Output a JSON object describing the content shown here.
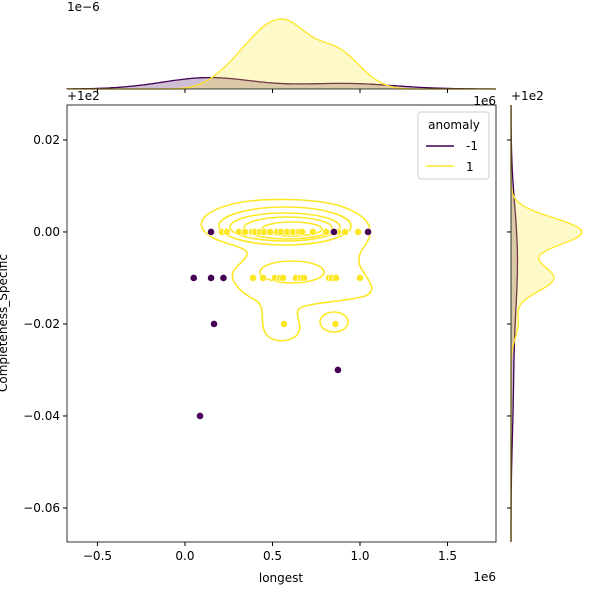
{
  "chart_data": {
    "type": "scatter",
    "subtype": "jointplot-with-kde",
    "xlabel": "longest",
    "ylabel": "Completeness_Specific",
    "x_offset_label": "1e6",
    "y_offset_label": "+1e2",
    "top_marginal_scale_label": "1e−6",
    "top_marginal_offset_label": "+1e2",
    "top_marginal_x_label": "1e6",
    "right_marginal_offset_label": "+1e2",
    "xlim": [
      -0.674,
      1.777
    ],
    "ylim": [
      -0.0674,
      0.0276
    ],
    "xticks": [
      -0.5,
      0.0,
      0.5,
      1.0,
      1.5
    ],
    "xtick_labels": [
      "−0.5",
      "0.0",
      "0.5",
      "1.0",
      "1.5"
    ],
    "yticks": [
      0.02,
      0.0,
      -0.02,
      -0.04,
      -0.06
    ],
    "ytick_labels": [
      "0.02",
      "0.00",
      "−0.02",
      "−0.04",
      "−0.06"
    ],
    "legend": {
      "title": "anomaly",
      "position": "top-right",
      "entries": [
        "-1",
        "1"
      ]
    },
    "colors": {
      "-1": "#440154",
      "1": "#fde725"
    },
    "series": [
      {
        "name": "-1",
        "x": [
          0.149,
          0.851,
          1.046,
          0.05,
          0.149,
          0.22,
          0.166,
          0.874,
          0.086
        ],
        "y": [
          0.0,
          0.0,
          0.0,
          -0.01,
          -0.01,
          -0.01,
          -0.02,
          -0.03,
          -0.04
        ]
      },
      {
        "name": "1",
        "x": [
          0.211,
          0.24,
          0.309,
          0.343,
          0.383,
          0.4,
          0.429,
          0.451,
          0.486,
          0.526,
          0.549,
          0.583,
          0.617,
          0.651,
          0.669,
          0.731,
          0.806,
          0.874,
          0.914,
          0.989,
          0.389,
          0.446,
          0.514,
          0.543,
          0.56,
          0.634,
          0.663,
          0.68,
          0.823,
          0.84,
          0.863,
          1.0,
          0.566,
          0.86
        ],
        "y": [
          0,
          0,
          0,
          0,
          0,
          0,
          0,
          0,
          0,
          0,
          0,
          0,
          0,
          0,
          0,
          0,
          0,
          0,
          0,
          0,
          -0.01,
          -0.01,
          -0.01,
          -0.01,
          -0.01,
          -0.01,
          -0.01,
          -0.01,
          -0.01,
          -0.01,
          -0.01,
          -0.01,
          -0.02,
          -0.02
        ]
      }
    ]
  }
}
